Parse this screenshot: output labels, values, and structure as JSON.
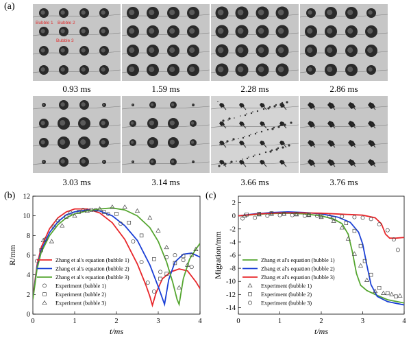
{
  "figure": {
    "panel_a_label": "(a)",
    "panel_b_label": "(b)",
    "panel_c_label": "(c)",
    "frames": [
      {
        "time": "0.93 ms",
        "stage": "expanding"
      },
      {
        "time": "1.59 ms",
        "stage": "max"
      },
      {
        "time": "2.28 ms",
        "stage": "large"
      },
      {
        "time": "2.86 ms",
        "stage": "shrinking"
      },
      {
        "time": "3.03 ms",
        "stage": "collapsing"
      },
      {
        "time": "3.14 ms",
        "stage": "collapsed"
      },
      {
        "time": "3.66 ms",
        "stage": "fragmented"
      },
      {
        "time": "3.76 ms",
        "stage": "rebound"
      }
    ],
    "bubble_annotations": [
      "Bubble 1",
      "Bubble 2",
      "Bubble 3"
    ],
    "annotation_color": "#e03030"
  },
  "chart_data": [
    {
      "type": "line",
      "title": "",
      "xlabel": "t/ms",
      "ylabel": "R/mm",
      "xlim": [
        0,
        4
      ],
      "ylim": [
        0,
        12
      ],
      "xticks": [
        0,
        1,
        2,
        3,
        4
      ],
      "yticks": [
        0,
        2,
        4,
        6,
        8,
        10,
        12
      ],
      "legend_position": "bottom-left",
      "series": [
        {
          "name": "Zhang et al's equation (bubble 1)",
          "color": "#e8262a",
          "style": "line",
          "x": [
            0,
            0.1,
            0.2,
            0.4,
            0.6,
            0.8,
            1.0,
            1.3,
            1.6,
            1.9,
            2.2,
            2.5,
            2.7,
            2.8,
            2.86,
            2.95,
            3.1,
            3.3,
            3.5,
            3.7,
            3.9,
            4.0
          ],
          "y": [
            1.8,
            5.0,
            6.8,
            8.7,
            9.8,
            10.4,
            10.7,
            10.7,
            10.3,
            9.3,
            7.6,
            5.1,
            3.0,
            1.8,
            0.9,
            2.2,
            3.6,
            4.3,
            4.6,
            4.4,
            3.3,
            2.6
          ]
        },
        {
          "name": "Zhang et al's equation (bubble 2)",
          "color": "#1a3fd6",
          "style": "line",
          "x": [
            0,
            0.1,
            0.2,
            0.4,
            0.6,
            0.8,
            1.0,
            1.3,
            1.6,
            1.9,
            2.2,
            2.5,
            2.8,
            3.0,
            3.1,
            3.15,
            3.25,
            3.4,
            3.6,
            3.8,
            4.0
          ],
          "y": [
            1.6,
            4.8,
            6.5,
            8.3,
            9.4,
            10.1,
            10.4,
            10.6,
            10.5,
            10.0,
            9.0,
            7.5,
            5.0,
            2.8,
            1.6,
            1.0,
            3.5,
            5.3,
            6.1,
            6.2,
            5.8
          ]
        },
        {
          "name": "Zhang et al's equation (bubble 3)",
          "color": "#55a630",
          "style": "line",
          "x": [
            0,
            0.1,
            0.2,
            0.4,
            0.6,
            0.8,
            1.0,
            1.3,
            1.6,
            1.9,
            2.2,
            2.5,
            2.8,
            3.0,
            3.2,
            3.35,
            3.45,
            3.5,
            3.6,
            3.75,
            3.9,
            4.0
          ],
          "y": [
            1.5,
            4.6,
            6.3,
            8.0,
            9.1,
            9.8,
            10.2,
            10.5,
            10.7,
            10.8,
            10.6,
            10.0,
            8.8,
            7.4,
            5.3,
            3.2,
            1.5,
            1.0,
            3.6,
            5.6,
            6.6,
            7.2
          ]
        },
        {
          "name": "Experiment (bubble 1)",
          "color": "#444444",
          "style": "circle",
          "x": [
            0.1,
            0.3,
            0.6,
            0.9,
            1.2,
            1.5,
            1.8,
            2.1,
            2.4,
            2.6,
            2.75,
            2.9,
            3.05,
            3.2,
            3.4,
            3.6,
            3.8
          ],
          "y": [
            5.4,
            7.6,
            9.5,
            10.3,
            10.6,
            10.6,
            10.2,
            9.2,
            7.4,
            5.3,
            3.2,
            2.3,
            4.3,
            5.8,
            6.0,
            5.5,
            4.8
          ]
        },
        {
          "name": "Experiment (bubble 2)",
          "color": "#444444",
          "style": "square",
          "x": [
            0.2,
            0.5,
            0.8,
            1.1,
            1.4,
            1.7,
            2.0,
            2.3,
            2.6,
            2.9,
            3.05,
            3.2,
            3.4,
            3.6,
            3.8
          ],
          "y": [
            6.5,
            8.9,
            9.9,
            10.4,
            10.6,
            10.4,
            10.2,
            9.3,
            8.0,
            5.6,
            3.6,
            4.1,
            5.2,
            5.9,
            6.0
          ]
        },
        {
          "name": "Experiment (bubble 3)",
          "color": "#444444",
          "style": "triangle",
          "x": [
            0.25,
            0.45,
            0.7,
            1.0,
            1.3,
            1.6,
            1.9,
            2.2,
            2.5,
            2.8,
            3.0,
            3.2,
            3.5,
            3.7,
            3.9
          ],
          "y": [
            7.5,
            7.4,
            9.0,
            10.0,
            10.5,
            10.7,
            10.9,
            10.9,
            10.5,
            9.8,
            8.5,
            6.8,
            2.7,
            5.0,
            6.6
          ]
        }
      ]
    },
    {
      "type": "line",
      "title": "",
      "xlabel": "t/ms",
      "ylabel": "Migration/mm",
      "xlim": [
        0,
        4
      ],
      "ylim": [
        -15,
        3
      ],
      "xticks": [
        0,
        1,
        2,
        3,
        4
      ],
      "yticks": [
        2,
        0,
        -2,
        -4,
        -6,
        -8,
        -10,
        -12,
        -14
      ],
      "legend_position": "bottom-left",
      "series": [
        {
          "name": "Zhang et al's equation (bubble 1)",
          "color": "#55a630",
          "style": "line",
          "x": [
            0,
            0.4,
            0.8,
            1.2,
            1.6,
            2.0,
            2.3,
            2.5,
            2.65,
            2.75,
            2.85,
            2.95,
            3.1,
            3.3,
            3.6,
            4.0
          ],
          "y": [
            0,
            0.2,
            0.35,
            0.4,
            0.3,
            0.0,
            -0.5,
            -1.2,
            -2.8,
            -5.5,
            -8.8,
            -10.6,
            -11.4,
            -12.0,
            -12.8,
            -13.3
          ]
        },
        {
          "name": "Zhang et al's equation (bubble 2)",
          "color": "#1a3fd6",
          "style": "line",
          "x": [
            0,
            0.4,
            0.8,
            1.2,
            1.6,
            2.0,
            2.4,
            2.7,
            2.9,
            3.0,
            3.1,
            3.2,
            3.35,
            3.6,
            4.0
          ],
          "y": [
            0,
            0.3,
            0.5,
            0.6,
            0.5,
            0.3,
            -0.2,
            -1.0,
            -2.5,
            -4.3,
            -7.5,
            -10.5,
            -12.3,
            -13.1,
            -13.6
          ]
        },
        {
          "name": "Zhang et al's equation (bubble 3)",
          "color": "#e8262a",
          "style": "line",
          "x": [
            0,
            0.5,
            1.0,
            1.5,
            2.0,
            2.5,
            3.0,
            3.3,
            3.45,
            3.55,
            3.65,
            3.8,
            4.0
          ],
          "y": [
            0,
            0.3,
            0.45,
            0.45,
            0.4,
            0.25,
            0.1,
            -0.3,
            -1.2,
            -2.8,
            -3.4,
            -3.4,
            -3.3
          ]
        },
        {
          "name": "Experiment (bubble 1)",
          "color": "#444444",
          "style": "triangle",
          "x": [
            0.15,
            0.5,
            0.8,
            1.1,
            1.4,
            1.7,
            2.0,
            2.3,
            2.5,
            2.65,
            2.8,
            2.95,
            3.1,
            3.3,
            3.5,
            3.7,
            3.9
          ],
          "y": [
            0.0,
            0.2,
            0.3,
            0.3,
            0.2,
            0.1,
            -0.2,
            -0.8,
            -1.8,
            -3.5,
            -5.8,
            -7.6,
            -9.8,
            -11.5,
            -11.8,
            -12.0,
            -12.2
          ]
        },
        {
          "name": "Experiment (bubble 2)",
          "color": "#444444",
          "style": "square",
          "x": [
            0.2,
            0.5,
            0.8,
            1.1,
            1.4,
            1.7,
            2.0,
            2.3,
            2.6,
            2.8,
            2.95,
            3.05,
            3.2,
            3.4,
            3.6,
            3.8
          ],
          "y": [
            0.2,
            0.3,
            0.4,
            0.3,
            0.3,
            0.2,
            0.0,
            -0.4,
            -1.1,
            -2.3,
            -4.6,
            -6.9,
            -9.0,
            -11.0,
            -11.8,
            -12.3
          ]
        },
        {
          "name": "Experiment (bubble 3)",
          "color": "#444444",
          "style": "circle",
          "x": [
            0.1,
            0.4,
            0.7,
            1.0,
            1.3,
            1.6,
            1.9,
            2.2,
            2.5,
            2.8,
            3.0,
            3.2,
            3.4,
            3.6,
            3.75,
            3.85
          ],
          "y": [
            -0.4,
            -0.3,
            0.0,
            0.1,
            0.1,
            0.0,
            0.0,
            -0.1,
            -0.1,
            -0.2,
            -0.3,
            -0.5,
            -1.3,
            -2.2,
            -3.6,
            -5.2
          ]
        }
      ]
    }
  ]
}
